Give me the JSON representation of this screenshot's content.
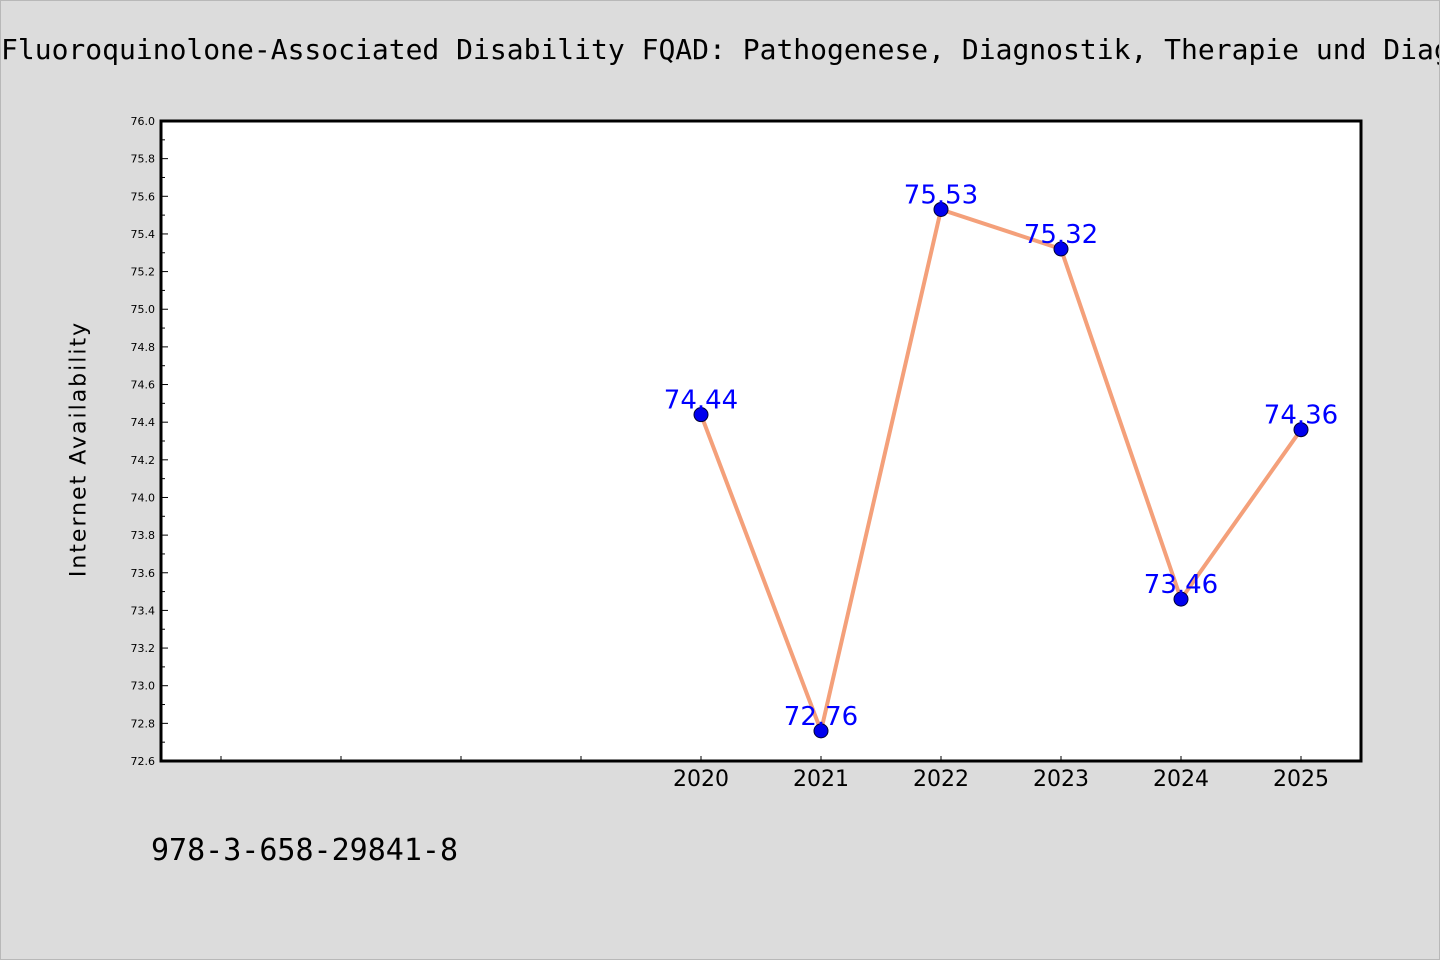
{
  "title": "Fluoroquinolone-Associated Disability FQAD: Pathogenese, Diagnostik, Therapie und Diagnosekriterien",
  "footer_text": "978-3-658-29841-8",
  "colors": {
    "background": "#dcdcdc",
    "plot_background": "#ffffff",
    "line": "#f4a07a",
    "marker": "#0000ee",
    "data_label": "#0000ff"
  },
  "chart_data": {
    "type": "line",
    "title": "Fluoroquinolone-Associated Disability FQAD: Pathogenese, Diagnostik, Therapie und Diagnosekriterien",
    "xlabel": "",
    "ylabel": "Internet Availability",
    "x": [
      "2020",
      "2021",
      "2022",
      "2023",
      "2024",
      "2025"
    ],
    "x_positions": [
      2020,
      2021,
      2022,
      2023,
      2024,
      2025
    ],
    "xlim": [
      2015.5,
      2025.5
    ],
    "extra_x_ticks": [
      2016,
      2017,
      2018,
      2019
    ],
    "series": [
      {
        "values": [
          74.44,
          72.76,
          75.53,
          75.32,
          73.46,
          74.36
        ]
      }
    ],
    "data_labels": [
      "74.44",
      "72.76",
      "75.53",
      "75.32",
      "73.46",
      "74.36"
    ],
    "ylim": [
      72.6,
      76.0
    ],
    "yticks": [
      "72.6",
      "72.8",
      "73.0",
      "73.2",
      "73.4",
      "73.6",
      "73.8",
      "74.0",
      "74.2",
      "74.4",
      "74.6",
      "74.8",
      "75.0",
      "75.2",
      "75.4",
      "75.6",
      "75.8",
      "76.0"
    ],
    "grid": false,
    "legend": "none"
  }
}
